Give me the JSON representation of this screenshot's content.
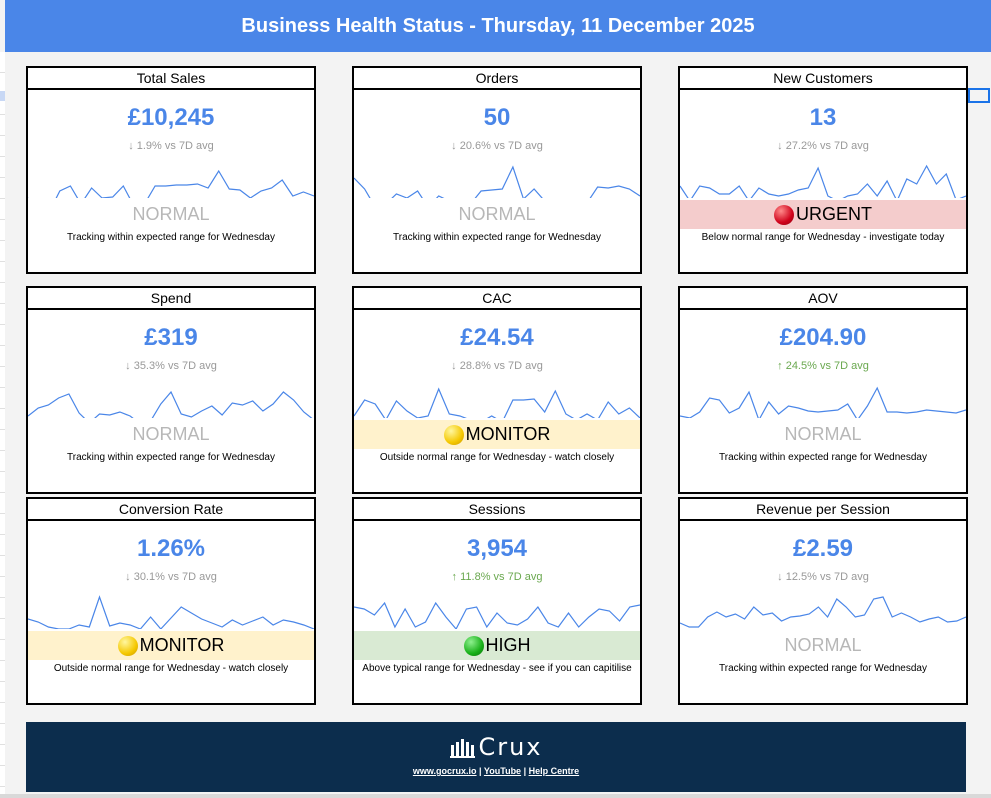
{
  "header": {
    "title": "Business Health Status - Thursday, 11 December 2025"
  },
  "colors": {
    "header_bg": "#4a86e8",
    "value": "#4a86e8",
    "line": "#4a86e8",
    "urgent_bg": "#f4cccc",
    "monitor_bg": "#fff2cc",
    "high_bg": "#d9ead3",
    "footer_bg": "#0c2d4d"
  },
  "cards": [
    {
      "title": "Total Sales",
      "value": "£10,245",
      "change": "↓ 1.9% vs 7D avg",
      "direction": "down",
      "status": "NORMAL",
      "status_type": "normal",
      "icon": "",
      "description": "Tracking within expected range for Wednesday",
      "sparkline": [
        42,
        56,
        56,
        35,
        30,
        48,
        32,
        42,
        41,
        30,
        50,
        48,
        30,
        30,
        29,
        29,
        28,
        32,
        15,
        33,
        34,
        42,
        35,
        32,
        24,
        40,
        36,
        40
      ]
    },
    {
      "title": "Orders",
      "value": "50",
      "change": "↓ 20.6% vs 7D avg",
      "direction": "down",
      "status": "NORMAL",
      "status_type": "normal",
      "icon": "",
      "description": "Tracking within expected range for Wednesday",
      "sparkline": [
        22,
        33,
        51,
        48,
        38,
        42,
        35,
        51,
        40,
        45,
        43,
        48,
        35,
        34,
        33,
        11,
        43,
        33,
        45,
        46,
        43,
        47,
        47,
        31,
        32,
        30,
        33,
        40
      ]
    },
    {
      "title": "New Customers",
      "value": "13",
      "change": "↓ 27.2% vs 7D avg",
      "direction": "down",
      "status": "URGENT",
      "status_type": "urgent",
      "icon": "red-circle-icon",
      "description": "Below normal range for Wednesday - investigate today",
      "sparkline": [
        30,
        45,
        30,
        32,
        38,
        38,
        30,
        45,
        32,
        38,
        40,
        38,
        34,
        32,
        12,
        40,
        45,
        40,
        38,
        28,
        40,
        25,
        45,
        23,
        28,
        10,
        28,
        18,
        44,
        40
      ]
    },
    {
      "title": "Spend",
      "value": "£319",
      "change": "↓ 35.3% vs 7D avg",
      "direction": "down",
      "status": "NORMAL",
      "status_type": "normal",
      "icon": "",
      "description": "Tracking within expected range for Wednesday",
      "sparkline": [
        40,
        32,
        29,
        22,
        18,
        37,
        47,
        38,
        39,
        36,
        40,
        48,
        45,
        28,
        16,
        38,
        41,
        35,
        30,
        39,
        27,
        29,
        25,
        35,
        28,
        16,
        24,
        36,
        44
      ]
    },
    {
      "title": "CAC",
      "value": "£24.54",
      "change": "↓ 28.8% vs 7D avg",
      "direction": "down",
      "status": "MONITOR",
      "status_type": "monitor",
      "icon": "yellow-circle-icon",
      "description": "Outside normal range for Wednesday - watch closely",
      "sparkline": [
        40,
        24,
        28,
        44,
        25,
        35,
        42,
        40,
        13,
        38,
        40,
        44,
        46,
        40,
        46,
        24,
        24,
        23,
        36,
        15,
        38,
        44,
        38,
        44,
        26,
        38,
        32,
        42
      ]
    },
    {
      "title": "AOV",
      "value": "£204.90",
      "change": "↑ 24.5% vs 7D avg",
      "direction": "up",
      "status": "NORMAL",
      "status_type": "normal",
      "icon": "",
      "description": "Tracking within expected range for Wednesday",
      "sparkline": [
        40,
        42,
        36,
        22,
        24,
        37,
        32,
        16,
        44,
        26,
        38,
        30,
        32,
        35,
        36,
        35,
        34,
        28,
        44,
        30,
        12,
        36,
        36,
        37,
        36,
        34,
        35,
        36,
        37,
        34
      ]
    },
    {
      "title": "Conversion Rate",
      "value": "1.26%",
      "change": "↓ 30.1% vs 7D avg",
      "direction": "down",
      "status": "MONITOR",
      "status_type": "monitor",
      "icon": "yellow-circle-icon",
      "description": "Outside normal range for Wednesday - watch closely",
      "sparkline": [
        32,
        35,
        40,
        42,
        42,
        38,
        40,
        10,
        39,
        36,
        38,
        42,
        30,
        42,
        31,
        20,
        26,
        32,
        36,
        40,
        33,
        38,
        34,
        30,
        38,
        33,
        35,
        38,
        42
      ]
    },
    {
      "title": "Sessions",
      "value": "3,954",
      "change": "↑ 11.8% vs 7D avg",
      "direction": "up",
      "status": "HIGH",
      "status_type": "high",
      "icon": "green-circle-icon",
      "description": "Above typical range for Wednesday - see if you can capitilise",
      "sparkline": [
        20,
        22,
        28,
        16,
        40,
        22,
        40,
        35,
        16,
        30,
        42,
        22,
        20,
        40,
        26,
        36,
        38,
        32,
        20,
        36,
        40,
        26,
        40,
        30,
        22,
        24,
        34,
        20,
        18
      ]
    },
    {
      "title": "Revenue per Session",
      "value": "£2.59",
      "change": "↓ 12.5% vs 7D avg",
      "direction": "down",
      "status": "NORMAL",
      "status_type": "normal",
      "icon": "",
      "description": "Tracking within expected range for Wednesday",
      "sparkline": [
        36,
        40,
        40,
        30,
        25,
        30,
        27,
        32,
        20,
        28,
        26,
        34,
        30,
        29,
        27,
        20,
        30,
        12,
        20,
        30,
        28,
        12,
        10,
        30,
        26,
        30,
        35,
        32,
        30,
        35,
        34,
        30
      ]
    }
  ],
  "footer": {
    "brand": "Crux",
    "brand_icon": "building-columns-icon",
    "links": [
      "www.gocrux.io",
      "YouTube",
      "Help Centre"
    ],
    "separator": " | "
  }
}
